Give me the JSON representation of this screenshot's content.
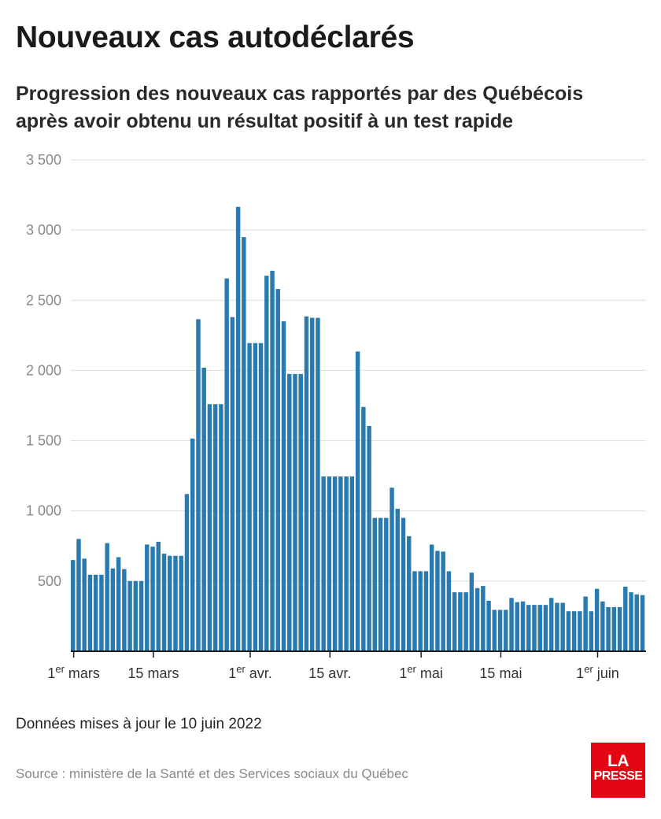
{
  "header": {
    "title": "Nouveaux cas autodéclarés",
    "subtitle": "Progression des nouveaux cas rapportés par des Québécois après avoir obtenu un résultat positif à un test rapide"
  },
  "footer": {
    "updated": "Données mises à jour le 10 juin 2022",
    "source": "Source : ministère de la Santé et des Services sociaux du Québec",
    "logo_line1": "LA",
    "logo_line2": "PRESSE"
  },
  "colors": {
    "bar": "#2a7ab0",
    "grid": "#dddddd",
    "axis": "#1a1a1a",
    "logo": "#e30613"
  },
  "chart_data": {
    "type": "bar",
    "title": "Nouveaux cas autodéclarés",
    "xlabel": "",
    "ylabel": "",
    "ylim": [
      0,
      3500
    ],
    "yticks": [
      {
        "value": 500,
        "label": "500"
      },
      {
        "value": 1000,
        "label": "1 000"
      },
      {
        "value": 1500,
        "label": "1 500"
      },
      {
        "value": 2000,
        "label": "2 000"
      },
      {
        "value": 2500,
        "label": "2 500"
      },
      {
        "value": 3000,
        "label": "3 000"
      },
      {
        "value": 3500,
        "label": "3 500"
      }
    ],
    "xticks": [
      {
        "index": 0,
        "prefix": "1",
        "sup": "er",
        "text": " mars"
      },
      {
        "index": 14,
        "prefix": "",
        "sup": "",
        "text": "15 mars"
      },
      {
        "index": 31,
        "prefix": "1",
        "sup": "er",
        "text": " avr."
      },
      {
        "index": 45,
        "prefix": "",
        "sup": "",
        "text": "15 avr."
      },
      {
        "index": 61,
        "prefix": "1",
        "sup": "er",
        "text": " mai"
      },
      {
        "index": 75,
        "prefix": "",
        "sup": "",
        "text": "15 mai"
      },
      {
        "index": 92,
        "prefix": "1",
        "sup": "er",
        "text": " juin"
      }
    ],
    "x_start": "2022-03-01",
    "grid": true,
    "legend": "none",
    "values": [
      650,
      800,
      660,
      545,
      545,
      545,
      770,
      590,
      670,
      585,
      500,
      500,
      500,
      760,
      745,
      780,
      695,
      680,
      680,
      680,
      1120,
      1515,
      2365,
      2020,
      1760,
      1760,
      1760,
      2655,
      2380,
      3165,
      2950,
      2195,
      2195,
      2195,
      2675,
      2710,
      2580,
      2350,
      1975,
      1975,
      1975,
      2385,
      2375,
      2375,
      1245,
      1245,
      1245,
      1245,
      1245,
      1245,
      2135,
      1740,
      1605,
      950,
      950,
      950,
      1165,
      1015,
      950,
      820,
      570,
      570,
      570,
      760,
      715,
      710,
      570,
      420,
      420,
      420,
      560,
      450,
      465,
      360,
      295,
      295,
      295,
      380,
      350,
      355,
      330,
      330,
      330,
      330,
      380,
      345,
      345,
      285,
      285,
      285,
      390,
      285,
      445,
      355,
      315,
      315,
      315,
      460,
      420,
      405,
      400
    ]
  }
}
